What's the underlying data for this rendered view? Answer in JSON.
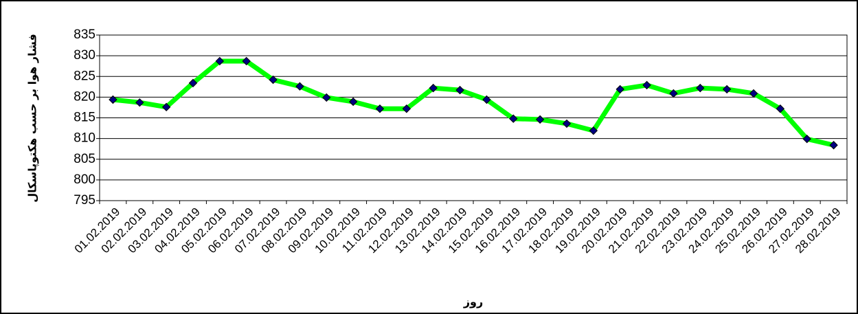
{
  "chart_data": {
    "type": "line",
    "x_label": "روز",
    "y_label": "فشار هوا بر حسب هکتوپاسکال",
    "categories": [
      "01.02.2019",
      "02.02.2019",
      "03.02.2019",
      "04.02.2019",
      "05.02.2019",
      "06.02.2019",
      "07.02.2019",
      "08.02.2019",
      "09.02.2019",
      "10.02.2019",
      "11.02.2019",
      "12.02.2019",
      "13.02.2019",
      "14.02.2019",
      "15.02.2019",
      "16.02.2019",
      "17.02.2019",
      "18.02.2019",
      "19.02.2019",
      "20.02.2019",
      "21.02.2019",
      "22.02.2019",
      "23.02.2019",
      "24.02.2019",
      "25.02.2019",
      "26.02.2019",
      "27.02.2019",
      "28.02.2019"
    ],
    "series": [
      {
        "color": "#00ff00",
        "marker_color": "#000080",
        "values": [
          819.4,
          818.7,
          817.6,
          823.4,
          828.7,
          828.7,
          824.2,
          822.6,
          819.9,
          818.9,
          817.2,
          817.2,
          822.2,
          821.7,
          819.4,
          814.8,
          814.6,
          813.6,
          811.9,
          821.9,
          822.9,
          820.9,
          822.2,
          821.9,
          820.9,
          817.2,
          809.9,
          808.4
        ]
      }
    ],
    "ylim": [
      795,
      835
    ],
    "yticks": [
      795,
      800,
      805,
      810,
      815,
      820,
      825,
      830,
      835
    ],
    "grid": true
  }
}
